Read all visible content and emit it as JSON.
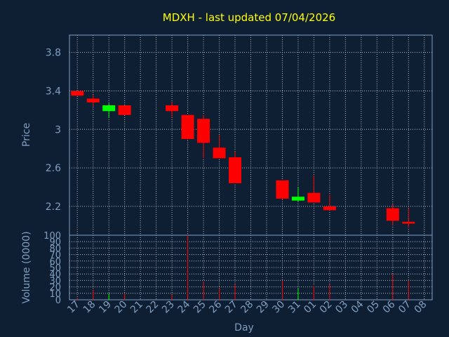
{
  "chart_data": {
    "type": "candlestick",
    "title": "MDXH - last updated 07/04/2026",
    "xlabel": "Day",
    "ylabel": "Price",
    "volume_label": "Volume (0000)",
    "price_ylim": [
      1.9,
      3.98
    ],
    "price_ticks": [
      "3.8",
      "3.4",
      "3",
      "2.6",
      "2.2"
    ],
    "volume_ylim": [
      0,
      100
    ],
    "volume_ticks": [
      "100",
      "90",
      "80",
      "70",
      "60",
      "50",
      "40",
      "30",
      "20",
      "10",
      "0"
    ],
    "x_ticks": [
      "17",
      "18",
      "19",
      "20",
      "21",
      "22",
      "23",
      "24",
      "25",
      "26",
      "27",
      "28",
      "29",
      "30",
      "31",
      "01",
      "02",
      "03",
      "04",
      "05",
      "06",
      "07",
      "08"
    ],
    "grid": true,
    "colors": {
      "up": "#00ff00",
      "down": "#ff0000",
      "title": "#ffff00",
      "axis": "#7f9fc0",
      "background": "#0f1f33"
    },
    "candles": [
      {
        "day": "17",
        "open": 3.4,
        "close": 3.35,
        "high": 3.4,
        "low": 3.35,
        "volume": 3
      },
      {
        "day": "18",
        "open": 3.32,
        "close": 3.28,
        "high": 3.36,
        "low": 3.24,
        "volume": 15
      },
      {
        "day": "19",
        "open": 3.19,
        "close": 3.25,
        "high": 3.27,
        "low": 3.12,
        "volume": 10
      },
      {
        "day": "20",
        "open": 3.25,
        "close": 3.15,
        "high": 3.25,
        "low": 3.15,
        "volume": 10
      },
      {
        "day": "23",
        "open": 3.25,
        "close": 3.19,
        "high": 3.29,
        "low": 3.13,
        "volume": 8
      },
      {
        "day": "24",
        "open": 3.15,
        "close": 2.9,
        "high": 3.15,
        "low": 2.89,
        "volume": 100
      },
      {
        "day": "25",
        "open": 3.11,
        "close": 2.86,
        "high": 3.15,
        "low": 2.7,
        "volume": 28
      },
      {
        "day": "26",
        "open": 2.81,
        "close": 2.7,
        "high": 2.94,
        "low": 2.7,
        "volume": 18
      },
      {
        "day": "27",
        "open": 2.71,
        "close": 2.44,
        "high": 2.77,
        "low": 2.44,
        "volume": 24
      },
      {
        "day": "30",
        "open": 2.47,
        "close": 2.28,
        "high": 2.47,
        "low": 2.27,
        "volume": 30
      },
      {
        "day": "31",
        "open": 2.26,
        "close": 2.3,
        "high": 2.4,
        "low": 2.25,
        "volume": 18
      },
      {
        "day": "01",
        "open": 2.34,
        "close": 2.24,
        "high": 2.52,
        "low": 2.24,
        "volume": 22
      },
      {
        "day": "02",
        "open": 2.2,
        "close": 2.16,
        "high": 2.32,
        "low": 2.16,
        "volume": 24
      },
      {
        "day": "06",
        "open": 2.18,
        "close": 2.05,
        "high": 2.22,
        "low": 2.0,
        "volume": 40
      },
      {
        "day": "07",
        "open": 2.04,
        "close": 2.02,
        "high": 2.18,
        "low": 1.98,
        "volume": 30
      }
    ]
  }
}
